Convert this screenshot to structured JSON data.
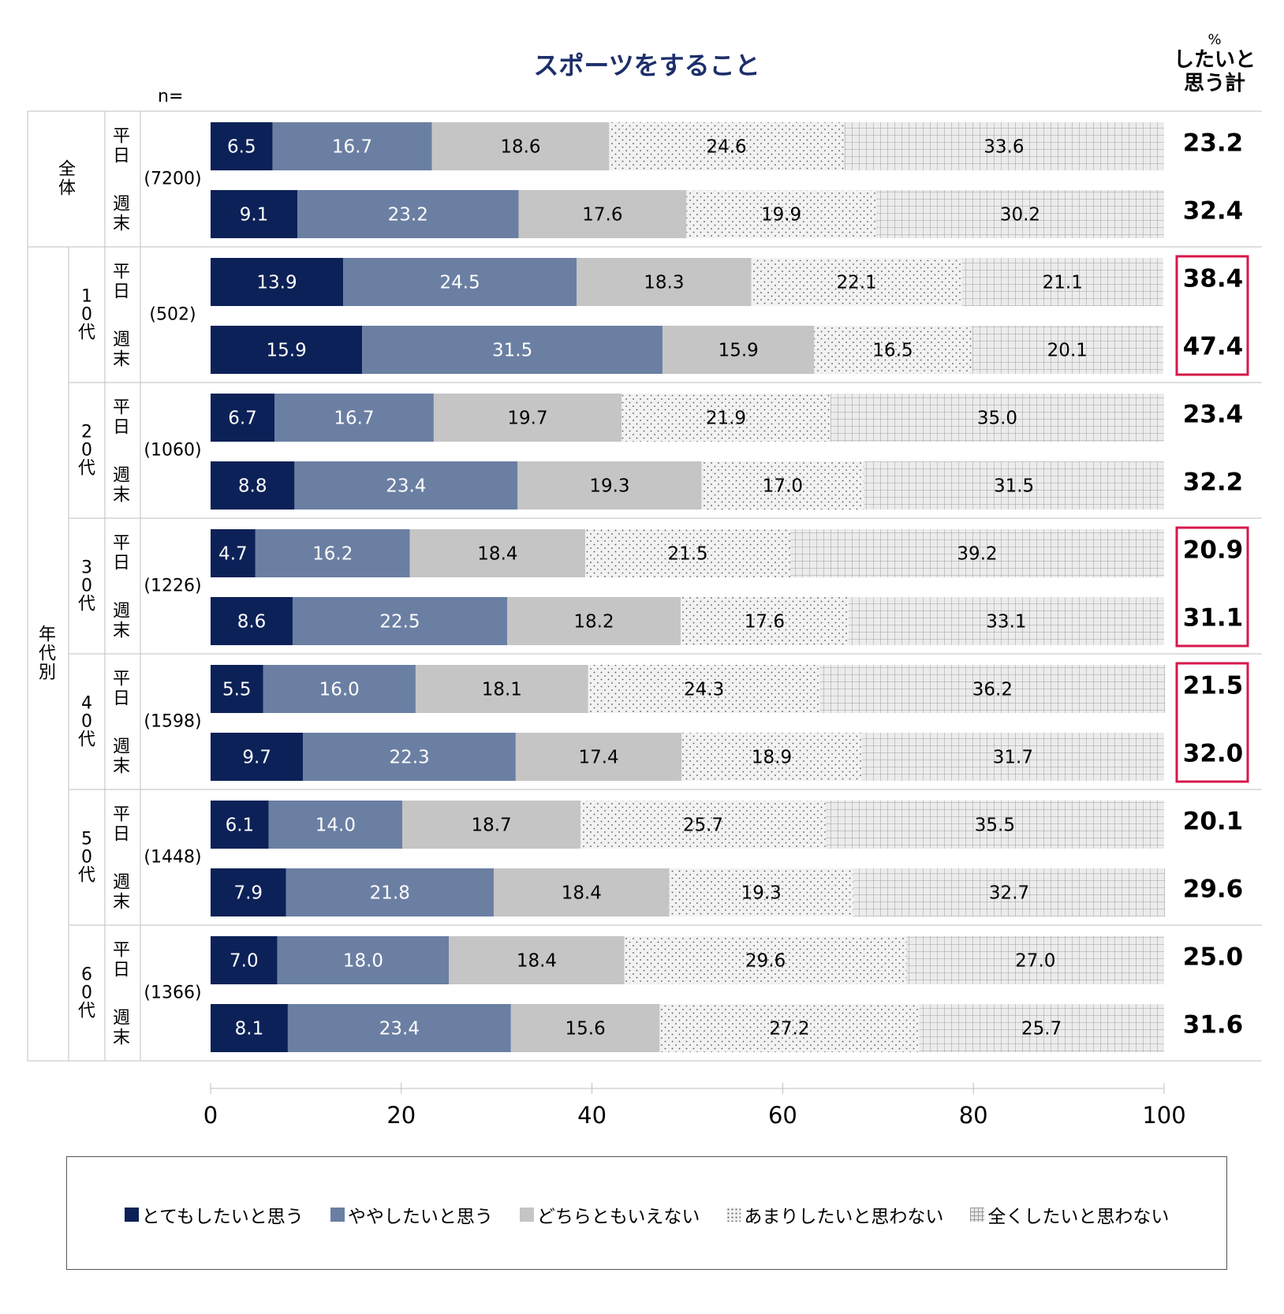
{
  "chart_data": {
    "type": "bar",
    "orientation": "horizontal-stacked-100",
    "title": "スポーツをすること",
    "n_label": "n=",
    "summary_header": {
      "unit": "%",
      "line1": "したいと",
      "line2": "思う計"
    },
    "xlim": [
      0,
      100
    ],
    "xticks": [
      "0",
      "20",
      "40",
      "60",
      "80",
      "100"
    ],
    "legend_position": "bottom",
    "series": [
      {
        "name": "とてもしたいと思う",
        "color": "#0c2157",
        "pattern": "solid"
      },
      {
        "name": "ややしたいと思う",
        "color": "#6b7fa3",
        "pattern": "solid"
      },
      {
        "name": "どちらともいえない",
        "color": "#c5c5c5",
        "pattern": "solid"
      },
      {
        "name": "あまりしたいと思わない",
        "color": "#f1f1f1",
        "pattern": "dots"
      },
      {
        "name": "全くしたいと思わない",
        "color": "#e9e9e9",
        "pattern": "grid"
      }
    ],
    "outer_labels": {
      "overall": "全体",
      "age": "年代別"
    },
    "groups": [
      {
        "label": "全体",
        "n": "(7200)",
        "rows": [
          {
            "day": "平日",
            "values": [
              6.5,
              16.7,
              18.6,
              24.6,
              33.6
            ],
            "labels": [
              "6.5",
              "16.7",
              "18.6",
              "24.6",
              "33.6"
            ],
            "total": "23.2",
            "highlight": false
          },
          {
            "day": "週末",
            "values": [
              9.1,
              23.2,
              17.6,
              19.9,
              30.2
            ],
            "labels": [
              "9.1",
              "23.2",
              "17.6",
              "19.9",
              "30.2"
            ],
            "total": "32.4",
            "highlight": false
          }
        ]
      },
      {
        "label": "10代",
        "n": "(502)",
        "rows": [
          {
            "day": "平日",
            "values": [
              13.9,
              24.5,
              18.3,
              22.1,
              21.1
            ],
            "labels": [
              "13.9",
              "24.5",
              "18.3",
              "22.1",
              "21.1"
            ],
            "total": "38.4",
            "highlight": true
          },
          {
            "day": "週末",
            "values": [
              15.9,
              31.5,
              15.9,
              16.5,
              20.1
            ],
            "labels": [
              "15.9",
              "31.5",
              "15.9",
              "16.5",
              "20.1"
            ],
            "total": "47.4",
            "highlight": true
          }
        ]
      },
      {
        "label": "20代",
        "n": "(1060)",
        "rows": [
          {
            "day": "平日",
            "values": [
              6.7,
              16.7,
              19.7,
              21.9,
              35.0
            ],
            "labels": [
              "6.7",
              "16.7",
              "19.7",
              "21.9",
              "35.0"
            ],
            "total": "23.4",
            "highlight": false
          },
          {
            "day": "週末",
            "values": [
              8.8,
              23.4,
              19.3,
              17.0,
              31.5
            ],
            "labels": [
              "8.8",
              "23.4",
              "19.3",
              "17.0",
              "31.5"
            ],
            "total": "32.2",
            "highlight": false
          }
        ]
      },
      {
        "label": "30代",
        "n": "(1226)",
        "rows": [
          {
            "day": "平日",
            "values": [
              4.7,
              16.2,
              18.4,
              21.5,
              39.2
            ],
            "labels": [
              "4.7",
              "16.2",
              "18.4",
              "21.5",
              "39.2"
            ],
            "total": "20.9",
            "highlight": true
          },
          {
            "day": "週末",
            "values": [
              8.6,
              22.5,
              18.2,
              17.6,
              33.1
            ],
            "labels": [
              "8.6",
              "22.5",
              "18.2",
              "17.6",
              "33.1"
            ],
            "total": "31.1",
            "highlight": true
          }
        ]
      },
      {
        "label": "40代",
        "n": "(1598)",
        "rows": [
          {
            "day": "平日",
            "values": [
              5.5,
              16.0,
              18.1,
              24.3,
              36.2
            ],
            "labels": [
              "5.5",
              "16.0",
              "18.1",
              "24.3",
              "36.2"
            ],
            "total": "21.5",
            "highlight": true
          },
          {
            "day": "週末",
            "values": [
              9.7,
              22.3,
              17.4,
              18.9,
              31.7
            ],
            "labels": [
              "9.7",
              "22.3",
              "17.4",
              "18.9",
              "31.7"
            ],
            "total": "32.0",
            "highlight": true
          }
        ]
      },
      {
        "label": "50代",
        "n": "(1448)",
        "rows": [
          {
            "day": "平日",
            "values": [
              6.1,
              14.0,
              18.7,
              25.7,
              35.5
            ],
            "labels": [
              "6.1",
              "14.0",
              "18.7",
              "25.7",
              "35.5"
            ],
            "total": "20.1",
            "highlight": false
          },
          {
            "day": "週末",
            "values": [
              7.9,
              21.8,
              18.4,
              19.3,
              32.7
            ],
            "labels": [
              "7.9",
              "21.8",
              "18.4",
              "19.3",
              "32.7"
            ],
            "total": "29.6",
            "highlight": false
          }
        ]
      },
      {
        "label": "60代",
        "n": "(1366)",
        "rows": [
          {
            "day": "平日",
            "values": [
              7.0,
              18.0,
              18.4,
              29.6,
              27.0
            ],
            "labels": [
              "7.0",
              "18.0",
              "18.4",
              "29.6",
              "27.0"
            ],
            "total": "25.0",
            "highlight": false
          },
          {
            "day": "週末",
            "values": [
              8.1,
              23.4,
              15.6,
              27.2,
              25.7
            ],
            "labels": [
              "8.1",
              "23.4",
              "15.6",
              "27.2",
              "25.7"
            ],
            "total": "31.6",
            "highlight": false
          }
        ]
      }
    ],
    "highlight_color": "#d6184a"
  }
}
